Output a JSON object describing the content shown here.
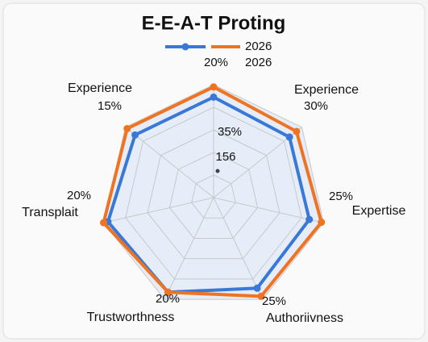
{
  "chart_data": {
    "type": "radar",
    "title": "E-E-A-T Proting",
    "categories": [
      null,
      "Experience",
      "Expertise",
      "Authoriivness",
      "Trustworthness",
      "Transplait",
      "Experience"
    ],
    "axis_notes": [
      "20%",
      "30%",
      "25%",
      "25%",
      "20%",
      "20%",
      "15%"
    ],
    "annotations": [
      "35%",
      "156"
    ],
    "series": [
      {
        "name": "2026",
        "color": "#3a78d8",
        "values": [
          89,
          86,
          87,
          89,
          93,
          96,
          89
        ]
      },
      {
        "name": "2026",
        "color": "#ee7422",
        "values": [
          98,
          94,
          98,
          97,
          93,
          100,
          98
        ]
      }
    ],
    "rlim": [
      0,
      100
    ],
    "rticks": [
      20,
      40,
      60,
      80,
      100
    ],
    "grid": true
  }
}
